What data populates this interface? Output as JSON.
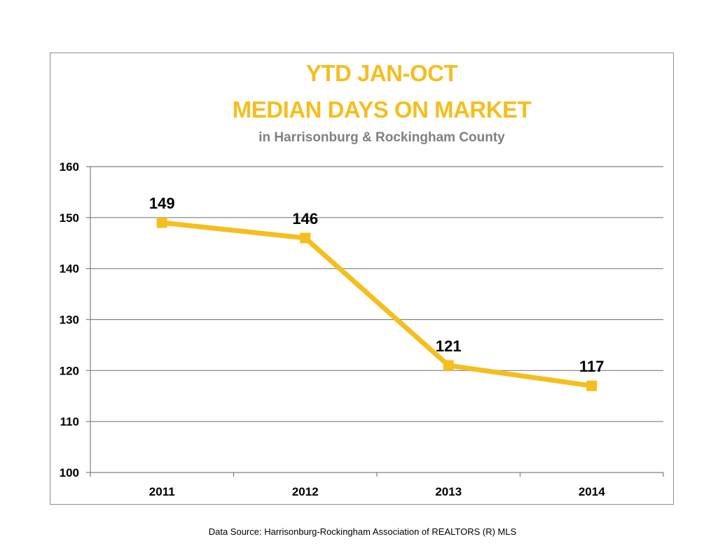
{
  "chart_data": {
    "type": "line",
    "title": [
      "YTD JAN-OCT",
      "MEDIAN DAYS ON MARKET"
    ],
    "subtitle": "in Harrisonburg  & Rockingham County",
    "categories": [
      "2011",
      "2012",
      "2013",
      "2014"
    ],
    "series": [
      {
        "values": [
          149,
          146,
          121,
          117
        ]
      }
    ],
    "data_labels": [
      "149",
      "146",
      "121",
      "117"
    ],
    "ylim": [
      100,
      160
    ],
    "yticks": [
      100,
      110,
      120,
      130,
      140,
      150,
      160
    ],
    "grid": true,
    "legend": "none",
    "marker": "square"
  },
  "colors": {
    "title": "#f5be1e",
    "subtitle": "#808080",
    "line": "#f5be1e",
    "marker": "#f5be1e",
    "gridline": "#7f7f7f",
    "axis": "#7f7f7f",
    "frame": "#8c8c8c"
  },
  "footer": {
    "source": "Data Source: Harrisonburg-Rockingham Association of REALTORS (R) MLS"
  }
}
